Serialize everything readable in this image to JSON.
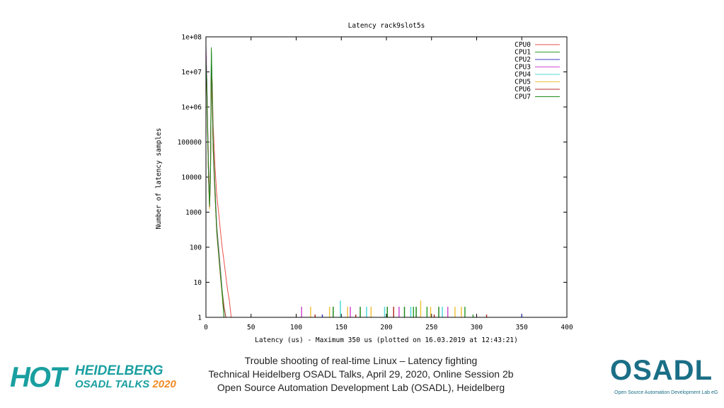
{
  "chart_data": {
    "type": "line",
    "title": "Latency rack9slot5s",
    "xlabel": "Latency (us) - Maximum 350 us (plotted on 16.03.2019 at 12:43:21)",
    "ylabel": "Number of latency samples",
    "x_ticks": [
      0,
      50,
      100,
      150,
      200,
      250,
      300,
      350,
      400
    ],
    "y_ticks": [
      1,
      10,
      100,
      1000,
      10000,
      100000,
      1000000,
      10000000,
      100000000
    ],
    "y_tick_labels": [
      "1",
      "10",
      "100",
      "1000",
      "10000",
      "100000",
      "1e+06",
      "1e+07",
      "1e+08"
    ],
    "xlim": [
      0,
      400
    ],
    "ylim": [
      1,
      100000000
    ],
    "y_scale": "log",
    "legend_position": "top-right",
    "series": [
      {
        "name": "CPU0",
        "color": "#e8504a",
        "points": [
          [
            0,
            20000000
          ],
          [
            1,
            4000000
          ],
          [
            2,
            200000
          ],
          [
            3,
            20000
          ],
          [
            4,
            3000
          ],
          [
            5,
            10000
          ],
          [
            6,
            20000000
          ],
          [
            7,
            5000000
          ],
          [
            8,
            300000
          ],
          [
            9,
            80000
          ],
          [
            10,
            20000
          ],
          [
            11,
            8000
          ],
          [
            12,
            3000
          ],
          [
            14,
            1000
          ],
          [
            16,
            300
          ],
          [
            18,
            100
          ],
          [
            20,
            40
          ],
          [
            22,
            15
          ],
          [
            24,
            6
          ],
          [
            26,
            3
          ],
          [
            28,
            1
          ]
        ],
        "spikes": []
      },
      {
        "name": "CPU1",
        "color": "#2ca02c",
        "points": [
          [
            0,
            30000000
          ],
          [
            1,
            5000000
          ],
          [
            2,
            150000
          ],
          [
            3,
            10000
          ],
          [
            4,
            2000
          ],
          [
            5,
            15000
          ],
          [
            6,
            40000000
          ],
          [
            7,
            3000000
          ],
          [
            8,
            100000
          ],
          [
            9,
            20000
          ],
          [
            10,
            5000
          ],
          [
            11,
            1500
          ],
          [
            12,
            400
          ],
          [
            14,
            100
          ],
          [
            16,
            25
          ],
          [
            18,
            6
          ],
          [
            20,
            2
          ],
          [
            22,
            1
          ]
        ],
        "spikes": [
          [
            230,
            2
          ],
          [
            245,
            2
          ],
          [
            287,
            2
          ],
          [
            296,
            1
          ]
        ]
      },
      {
        "name": "CPU2",
        "color": "#3c3cc8",
        "points": [
          [
            0,
            25000000
          ],
          [
            1,
            4000000
          ],
          [
            2,
            100000
          ],
          [
            3,
            8000
          ],
          [
            4,
            1500
          ],
          [
            5,
            12000
          ],
          [
            6,
            30000000
          ],
          [
            7,
            2000000
          ],
          [
            8,
            80000
          ],
          [
            9,
            15000
          ],
          [
            10,
            4000
          ],
          [
            11,
            1200
          ],
          [
            12,
            300
          ],
          [
            14,
            80
          ],
          [
            16,
            20
          ],
          [
            18,
            5
          ],
          [
            20,
            1
          ]
        ],
        "spikes": [
          [
            129,
            1
          ],
          [
            350,
            1
          ]
        ]
      },
      {
        "name": "CPU3",
        "color": "#d24bd2",
        "points": [
          [
            0,
            60000000
          ],
          [
            1,
            6000000
          ],
          [
            2,
            200000
          ],
          [
            3,
            12000
          ],
          [
            4,
            2000
          ],
          [
            5,
            10000
          ],
          [
            6,
            25000000
          ],
          [
            7,
            2000000
          ],
          [
            8,
            90000
          ],
          [
            9,
            18000
          ],
          [
            10,
            4500
          ],
          [
            11,
            1300
          ],
          [
            12,
            350
          ],
          [
            14,
            90
          ],
          [
            16,
            22
          ],
          [
            18,
            5
          ],
          [
            20,
            1
          ]
        ],
        "spikes": [
          [
            106,
            2
          ],
          [
            160,
            2
          ],
          [
            214,
            2
          ],
          [
            268,
            2
          ]
        ]
      },
      {
        "name": "CPU4",
        "color": "#4fd8d8",
        "points": [
          [
            0,
            20000000
          ],
          [
            1,
            3000000
          ],
          [
            2,
            120000
          ],
          [
            3,
            9000
          ],
          [
            4,
            1600
          ],
          [
            5,
            9000
          ],
          [
            6,
            20000000
          ],
          [
            7,
            1500000
          ],
          [
            8,
            70000
          ],
          [
            9,
            14000
          ],
          [
            10,
            3500
          ],
          [
            11,
            1000
          ],
          [
            12,
            280
          ],
          [
            14,
            70
          ],
          [
            16,
            18
          ],
          [
            18,
            4
          ],
          [
            20,
            1
          ]
        ],
        "spikes": [
          [
            149,
            3
          ],
          [
            178,
            2
          ],
          [
            198,
            2
          ],
          [
            227,
            2
          ],
          [
            262,
            2
          ]
        ]
      },
      {
        "name": "CPU5",
        "color": "#f0c23c",
        "points": [
          [
            0,
            15000000
          ],
          [
            1,
            2500000
          ],
          [
            2,
            100000
          ],
          [
            3,
            7000
          ],
          [
            4,
            1200
          ],
          [
            5,
            8000
          ],
          [
            6,
            15000000
          ],
          [
            7,
            1200000
          ],
          [
            8,
            60000
          ],
          [
            9,
            12000
          ],
          [
            10,
            3000
          ],
          [
            11,
            900
          ],
          [
            12,
            250
          ],
          [
            14,
            60
          ],
          [
            16,
            15
          ],
          [
            18,
            4
          ],
          [
            20,
            1
          ]
        ],
        "spikes": [
          [
            116,
            2
          ],
          [
            137,
            2
          ],
          [
            157,
            2
          ],
          [
            183,
            2
          ],
          [
            238,
            3
          ],
          [
            249,
            2
          ],
          [
            276,
            2
          ],
          [
            283,
            2
          ]
        ]
      },
      {
        "name": "CPU6",
        "color": "#b0302a",
        "points": [
          [
            0,
            20000000
          ],
          [
            1,
            3000000
          ],
          [
            2,
            110000
          ],
          [
            3,
            8000
          ],
          [
            4,
            1400
          ],
          [
            5,
            10000
          ],
          [
            6,
            18000000
          ],
          [
            7,
            1400000
          ],
          [
            8,
            65000
          ],
          [
            9,
            13000
          ],
          [
            10,
            3200
          ],
          [
            11,
            950
          ],
          [
            12,
            260
          ],
          [
            14,
            65
          ],
          [
            16,
            16
          ],
          [
            18,
            5
          ],
          [
            20,
            2
          ],
          [
            22,
            1
          ]
        ],
        "spikes": [
          [
            121,
            1
          ],
          [
            166,
            1
          ],
          [
            208,
            2
          ],
          [
            253,
            1
          ],
          [
            311,
            1
          ]
        ]
      },
      {
        "name": "CPU7",
        "color": "#1e8a1e",
        "points": [
          [
            0,
            25000000
          ],
          [
            1,
            4000000
          ],
          [
            2,
            130000
          ],
          [
            3,
            9000
          ],
          [
            4,
            1500
          ],
          [
            5,
            11000
          ],
          [
            6,
            50000000
          ],
          [
            7,
            2500000
          ],
          [
            8,
            85000
          ],
          [
            9,
            16000
          ],
          [
            10,
            4000
          ],
          [
            11,
            1100
          ],
          [
            12,
            290
          ],
          [
            14,
            72
          ],
          [
            16,
            18
          ],
          [
            18,
            5
          ],
          [
            20,
            1
          ]
        ],
        "spikes": [
          [
            141,
            2
          ],
          [
            171,
            2
          ],
          [
            201,
            2
          ],
          [
            220,
            2
          ],
          [
            233,
            2
          ],
          [
            258,
            2
          ]
        ]
      }
    ]
  },
  "footer": {
    "line1": "Trouble shooting of real-time Linux – Latency fighting",
    "line2": "Technical Heidelberg OSADL Talks, April 29, 2020, Online Session 2b",
    "line3": "Open Source Automation Development Lab (OSADL), Heidelberg"
  },
  "logos": {
    "hot_word": "HOT",
    "hot_line1": "HEIDELBERG",
    "hot_line2_a": "OSADL TALKS ",
    "hot_line2_b": "2020",
    "osadl_word": "OSADL",
    "osadl_sub": "Open Source Automation Development Lab eG",
    "hot_color": "#1a9fa0",
    "osadl_color": "#1a6f86"
  }
}
